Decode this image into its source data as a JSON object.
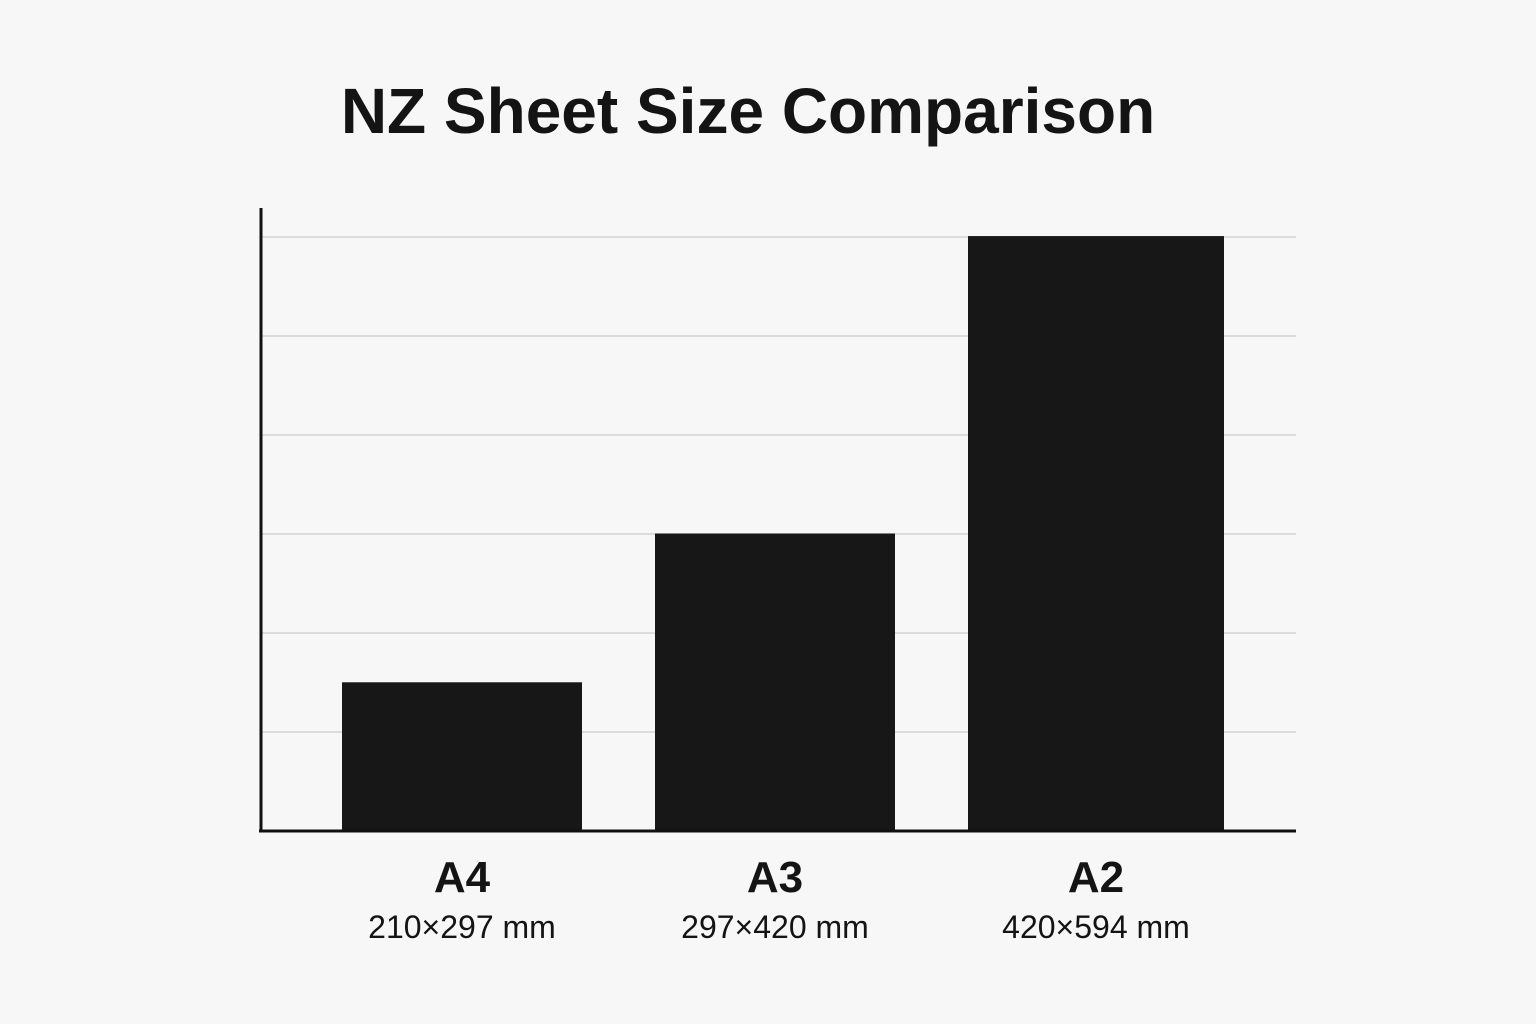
{
  "chart_data": {
    "type": "bar",
    "title": "NZ Sheet Size Comparison",
    "xlabel": "",
    "ylabel": "",
    "categories": [
      "A4",
      "A3",
      "A2"
    ],
    "dimension_labels": [
      "210×297 mm",
      "297×420 mm",
      "420×594 mm"
    ],
    "values": [
      62370,
      124740,
      249480
    ],
    "ylim": [
      0,
      260000
    ],
    "grid": true,
    "legend": "none",
    "colors": {
      "bar": "#171717",
      "grid": "#dcdcdc",
      "axis": "#111111",
      "background": "#f7f7f7"
    }
  }
}
